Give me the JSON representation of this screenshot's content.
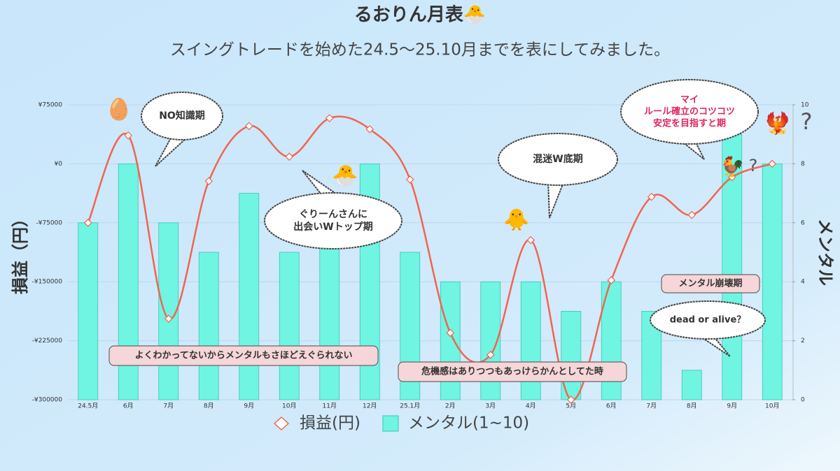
{
  "chart_data": {
    "type": "bar-line",
    "title": "るおりん月表🐣",
    "subtitle": "スイングトレードを始めた24.5〜25.10月までを表にしてみました。",
    "categories": [
      "24.5月",
      "6月",
      "7月",
      "8月",
      "9月",
      "10月",
      "11月",
      "12月",
      "25.1月",
      "2月",
      "3月",
      "4月",
      "5月",
      "6月",
      "7月",
      "8月",
      "9月",
      "10月"
    ],
    "series": [
      {
        "name": "損益(円)",
        "type": "line",
        "color": "#f0654f",
        "axis": "y",
        "values": [
          -75000,
          36000,
          -197000,
          -22000,
          48000,
          9000,
          58000,
          44000,
          -20000,
          -215000,
          -243000,
          -97000,
          -300000,
          -148000,
          -42000,
          -65000,
          -17000,
          0
        ]
      },
      {
        "name": "メンタル(1~10)",
        "type": "bar",
        "color": "#6ff5e2",
        "axis": "y2",
        "values": [
          6,
          8,
          6,
          5,
          7,
          5,
          7,
          8,
          5,
          4,
          4,
          4,
          3,
          4,
          3,
          1,
          9,
          8
        ]
      }
    ],
    "ylabel": "損益（円）",
    "y2label": "メンタル",
    "ylim": [
      -300000,
      75000
    ],
    "yticks": [
      {
        "value": 75000,
        "label": "¥75000"
      },
      {
        "value": 0,
        "label": "¥0"
      },
      {
        "value": -75000,
        "label": "-¥75000"
      },
      {
        "value": -150000,
        "label": "-¥150000"
      },
      {
        "value": -225000,
        "label": "-¥225000"
      },
      {
        "value": -300000,
        "label": "-¥300000"
      }
    ],
    "y2lim": [
      0,
      10
    ],
    "y2ticks": [
      0,
      2,
      4,
      6,
      8,
      10
    ],
    "grid": true,
    "legend": "bottom",
    "annotations": [
      [
        "NO知識期"
      ],
      [
        "ぐりーんさんに",
        "出会いWトップ期"
      ],
      [
        "混迷W底期"
      ],
      [
        "マイ",
        "ルール確立のコツコツ",
        "安定を目指すと期"
      ],
      [
        "メンタル崩壊期"
      ],
      [
        "dead or alive？"
      ],
      [
        "よくわかってないからメンタルもさほどえぐられない"
      ],
      [
        "危機感はありつつもあっけらかんとしてた時"
      ],
      [
        "🥚"
      ],
      [
        "🐣"
      ],
      [
        "🐥"
      ],
      [
        "🐓"
      ],
      [
        "?"
      ],
      [
        "🐦‍🔥"
      ],
      [
        "?"
      ]
    ]
  }
}
